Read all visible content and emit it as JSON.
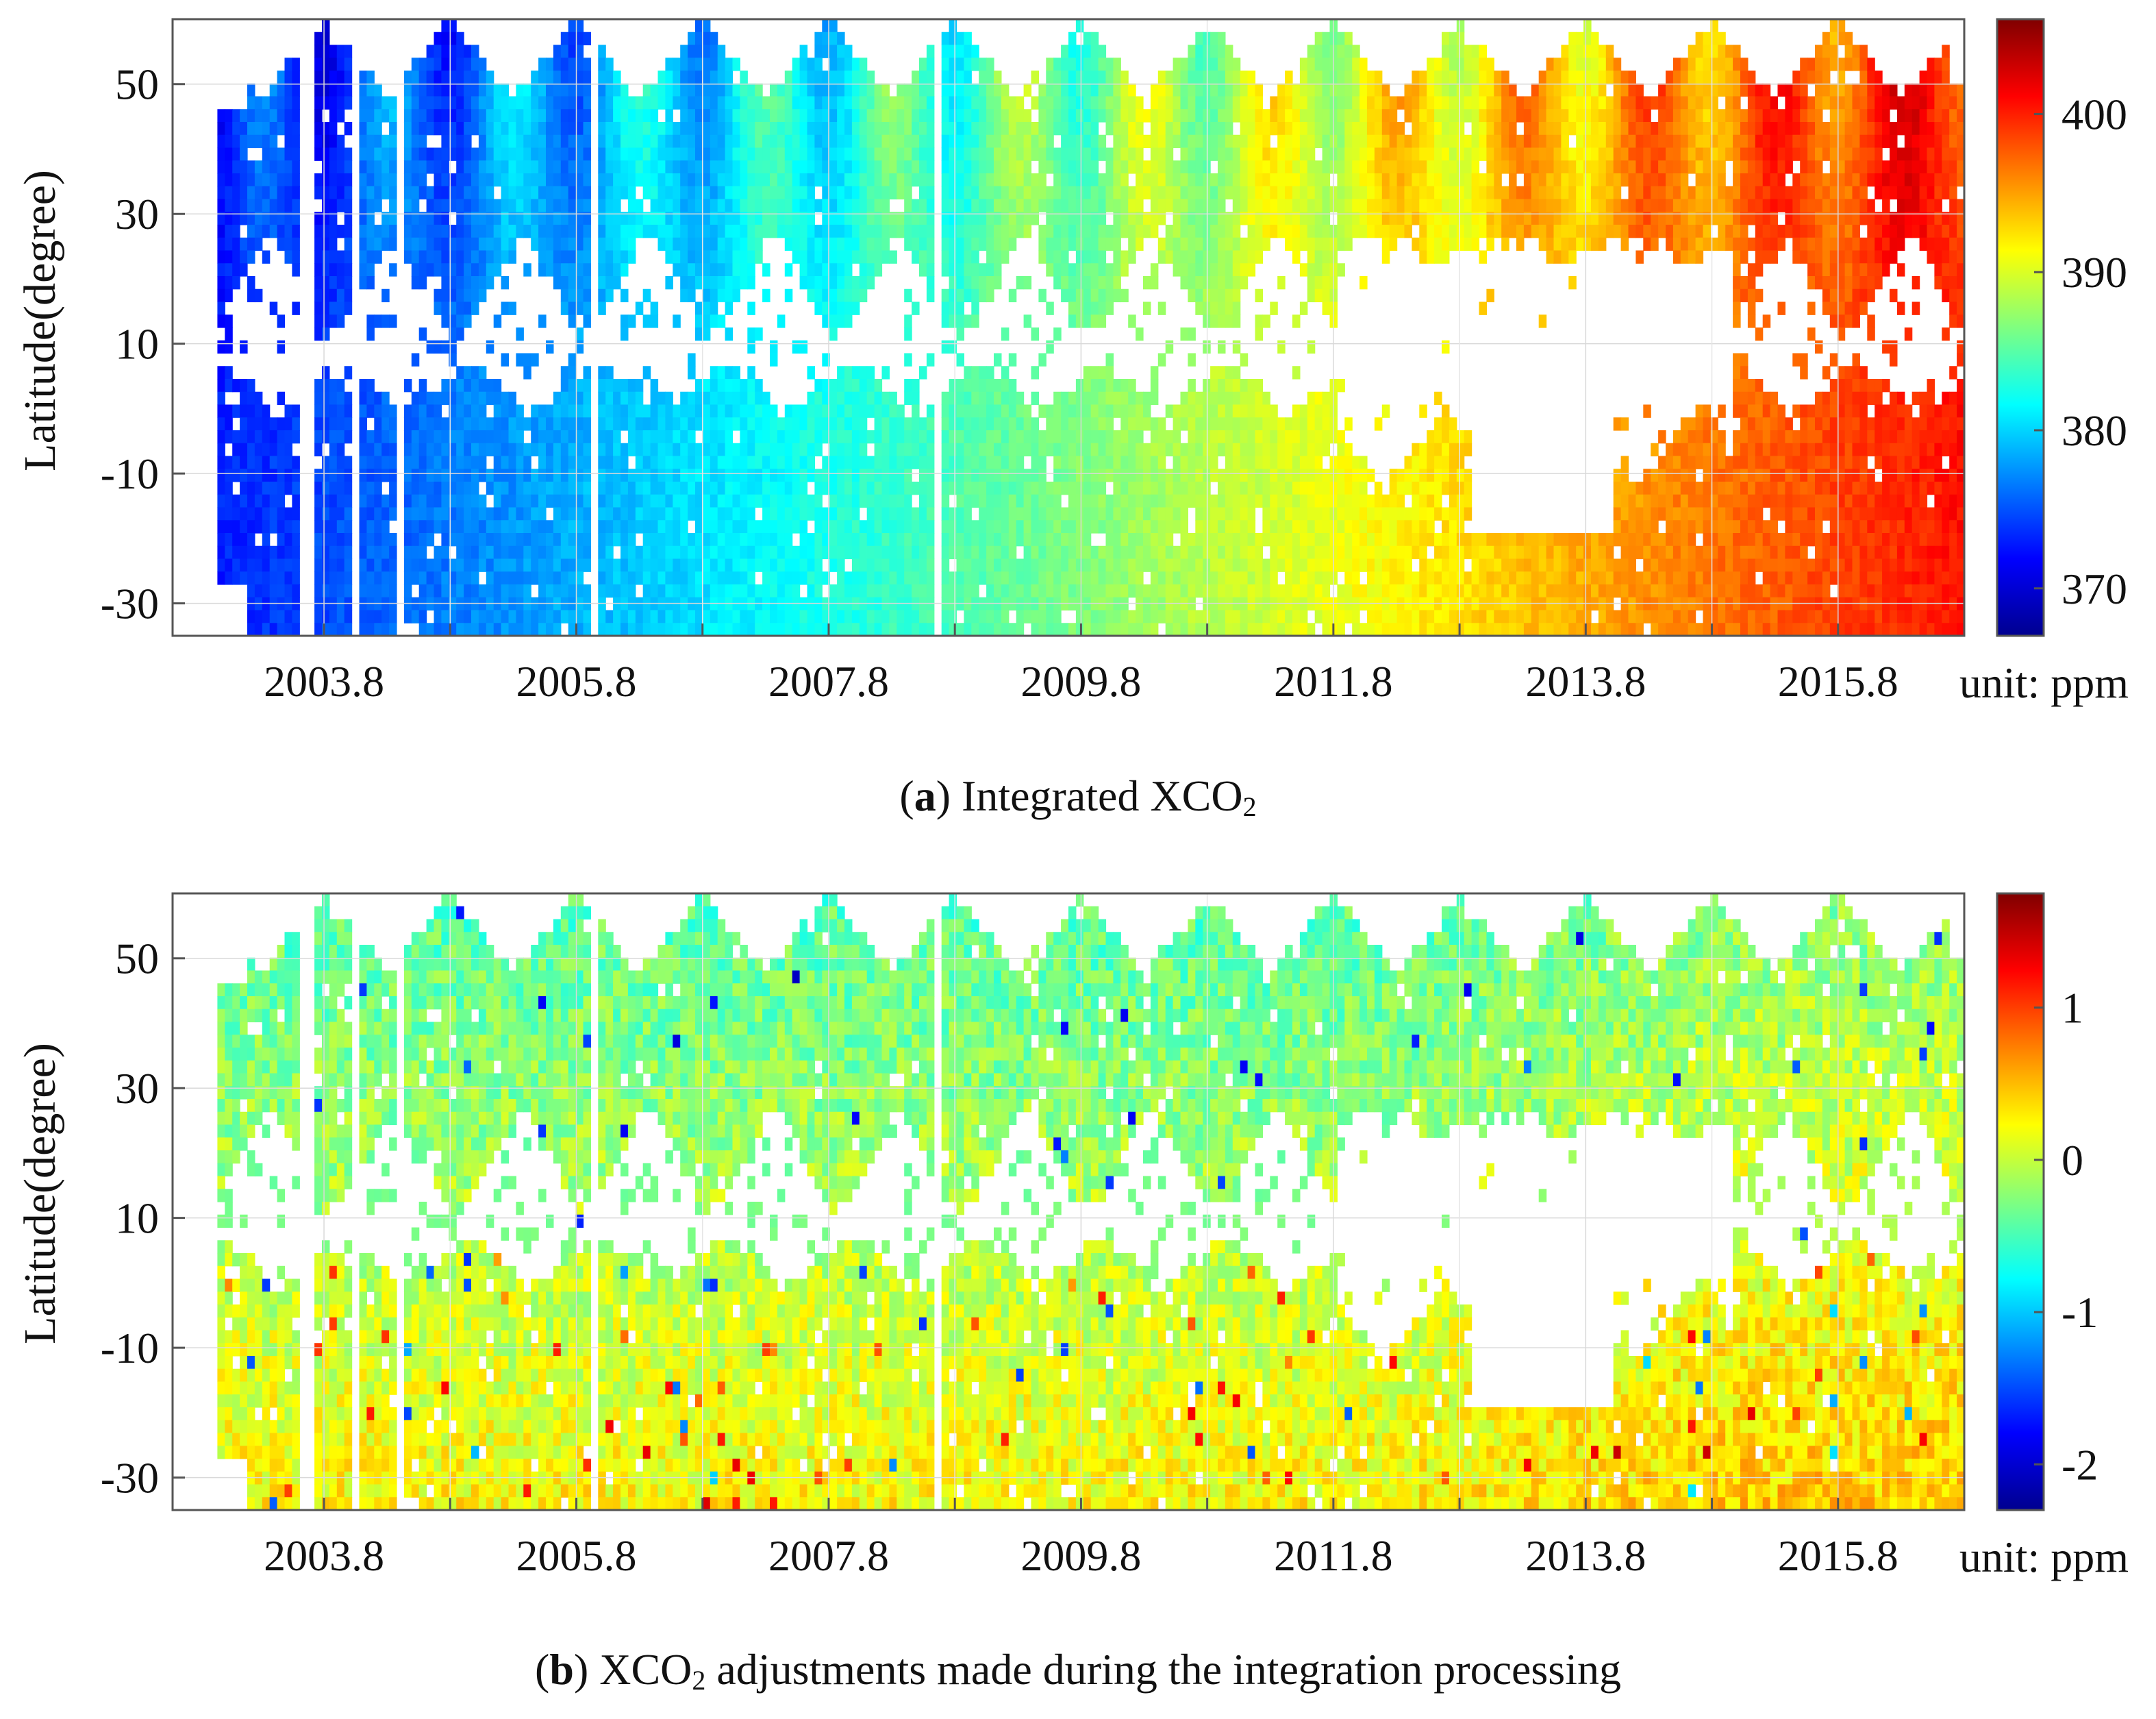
{
  "chart_data": [
    {
      "type": "heatmap",
      "panel_letter": "a",
      "caption": "Integrated XCO",
      "caption_subscript": "2",
      "ylabel": "Latitude(degree)",
      "y_ticks": [
        "50",
        "30",
        "10",
        "-10",
        "-30"
      ],
      "y_tick_values": [
        50,
        30,
        10,
        -10,
        -30
      ],
      "ylim": [
        -35,
        60
      ],
      "x_ticks": [
        "2003.8",
        "2005.8",
        "2007.8",
        "2009.8",
        "2011.8",
        "2013.8",
        "2015.8"
      ],
      "x_tick_values": [
        2003.8,
        2005.8,
        2007.8,
        2009.8,
        2011.8,
        2013.8,
        2015.8
      ],
      "xlim": [
        2002.6,
        2016.8
      ],
      "colorbar": {
        "ticks": [
          "400",
          "390",
          "380",
          "370"
        ],
        "tick_values": [
          400,
          390,
          380,
          370
        ],
        "range": [
          367,
          406
        ],
        "unit": "unit: ppm"
      },
      "value_trend": {
        "start_year": 2003.0,
        "start_value": 373,
        "growth_ppm_per_year": 2.0,
        "seasonal_amplitude": 4.5
      },
      "grid": true
    },
    {
      "type": "heatmap",
      "panel_letter": "b",
      "caption": "XCO",
      "caption_subscript": "2",
      "caption_rest": " adjustments made during the integration processing",
      "ylabel": "Latitude(degree)",
      "y_ticks": [
        "50",
        "30",
        "10",
        "-10",
        "-30"
      ],
      "y_tick_values": [
        50,
        30,
        10,
        -10,
        -30
      ],
      "ylim": [
        -35,
        60
      ],
      "x_ticks": [
        "2003.8",
        "2005.8",
        "2007.8",
        "2009.8",
        "2011.8",
        "2013.8",
        "2015.8"
      ],
      "x_tick_values": [
        2003.8,
        2005.8,
        2007.8,
        2009.8,
        2011.8,
        2013.8,
        2015.8
      ],
      "xlim": [
        2002.6,
        2016.8
      ],
      "colorbar": {
        "ticks": [
          "1",
          "0",
          "-1",
          "-2"
        ],
        "tick_values": [
          1,
          0,
          -1,
          -2
        ],
        "range": [
          -2.3,
          1.75
        ],
        "unit": "unit: ppm"
      },
      "value_trend": {
        "north_value": -0.45,
        "south_value": 0.25,
        "late_period_shift": 0.2
      },
      "grid": true
    }
  ]
}
